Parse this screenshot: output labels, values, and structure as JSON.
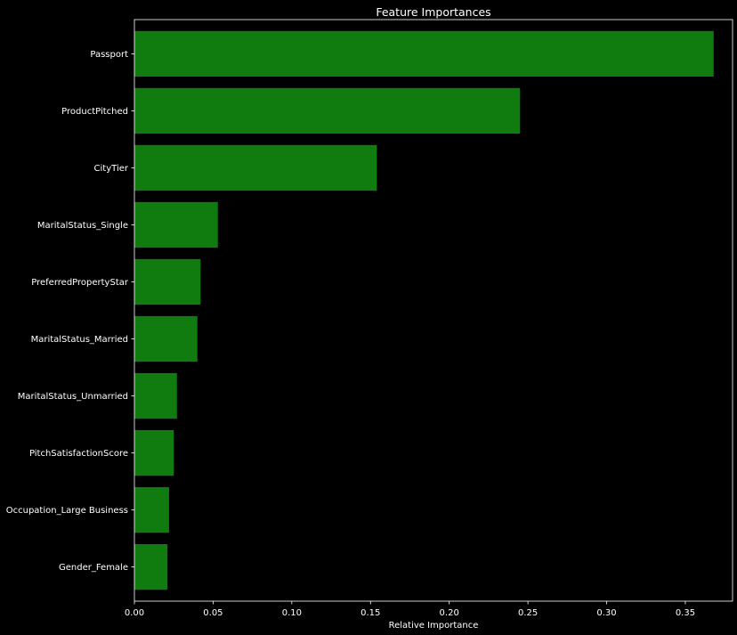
{
  "chart_data": {
    "type": "bar",
    "orientation": "horizontal",
    "title": "Feature Importances",
    "xlabel": "Relative Importance",
    "ylabel": "",
    "xlim": [
      0,
      0.38
    ],
    "xticks": [
      0.0,
      0.05,
      0.1,
      0.15,
      0.2,
      0.25,
      0.3,
      0.35
    ],
    "xtick_labels": [
      "0.00",
      "0.05",
      "0.10",
      "0.15",
      "0.20",
      "0.25",
      "0.30",
      "0.35"
    ],
    "categories": [
      "Passport",
      "ProductPitched",
      "CityTier",
      "MaritalStatus_Single",
      "PreferredPropertyStar",
      "MaritalStatus_Married",
      "MaritalStatus_Unmarried",
      "PitchSatisfactionScore",
      "Occupation_Large Business",
      "Gender_Female"
    ],
    "values": [
      0.368,
      0.245,
      0.154,
      0.053,
      0.042,
      0.04,
      0.027,
      0.025,
      0.022,
      0.021
    ],
    "bar_color": "#107c10",
    "background": "#000000",
    "grid": false
  }
}
